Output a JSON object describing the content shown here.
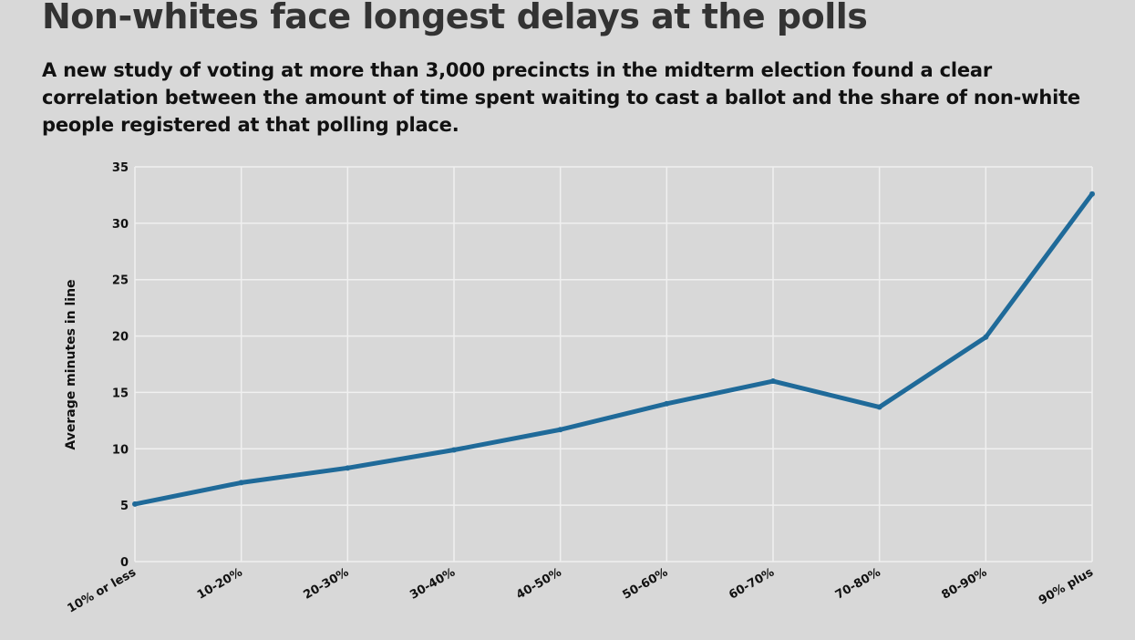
{
  "chart_data": {
    "type": "line",
    "title": "Non-whites face longest delays at the polls",
    "subtitle": "A new study of voting at more than 3,000 precincts in the midterm election found a clear correlation between the amount of time spent waiting to cast a ballot and the share of non-white people registered at that polling place.",
    "xlabel": "",
    "ylabel": "Average minutes in line",
    "categories": [
      "10% or less",
      "10-20%",
      "20-30%",
      "30-40%",
      "40-50%",
      "50-60%",
      "60-70%",
      "70-80%",
      "80-90%",
      "90% plus"
    ],
    "values": [
      5.1,
      7.0,
      8.3,
      9.9,
      11.7,
      14.0,
      16.0,
      13.7,
      19.9,
      32.6
    ],
    "ylim": [
      0,
      35
    ],
    "yticks": [
      0,
      5,
      10,
      15,
      20,
      25,
      30,
      35
    ],
    "grid": true,
    "line_color": "#1f6a99",
    "background": "#d8d8d8"
  }
}
